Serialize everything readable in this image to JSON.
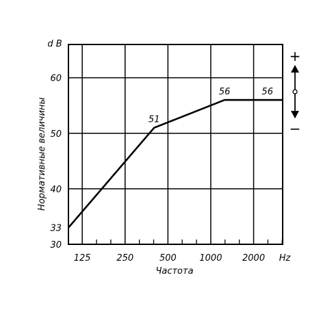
{
  "chart_data": {
    "type": "line",
    "title": "",
    "xlabel": "Частота",
    "ylabel": "Нормативные величины",
    "x_unit": "Hz",
    "y_unit": "d B",
    "x_scale": "log",
    "x_ticks": [
      {
        "value": 125,
        "label": "125"
      },
      {
        "value": 250,
        "label": "250"
      },
      {
        "value": 500,
        "label": "500"
      },
      {
        "value": 1000,
        "label": "1000"
      },
      {
        "value": 2000,
        "label": "2000"
      }
    ],
    "x_range": [
      100,
      3200
    ],
    "y_ticks": [
      {
        "value": 30,
        "label": "30"
      },
      {
        "value": 33,
        "label": "33"
      },
      {
        "value": 40,
        "label": "40"
      },
      {
        "value": 50,
        "label": "50"
      },
      {
        "value": 60,
        "label": "60"
      }
    ],
    "ylim": [
      30,
      66
    ],
    "grid": true,
    "series": [
      {
        "name": "",
        "color": "#000000",
        "x": [
          100,
          400,
          1250,
          3200
        ],
        "y": [
          33,
          51,
          56,
          56
        ]
      }
    ],
    "data_labels": [
      {
        "x": 400,
        "y": 51,
        "label": "51"
      },
      {
        "x": 1250,
        "y": 56,
        "label": "56"
      },
      {
        "x": 2500,
        "y": 56,
        "label": "56"
      }
    ],
    "side_indicator": {
      "plus": "+",
      "minus": "−"
    }
  }
}
